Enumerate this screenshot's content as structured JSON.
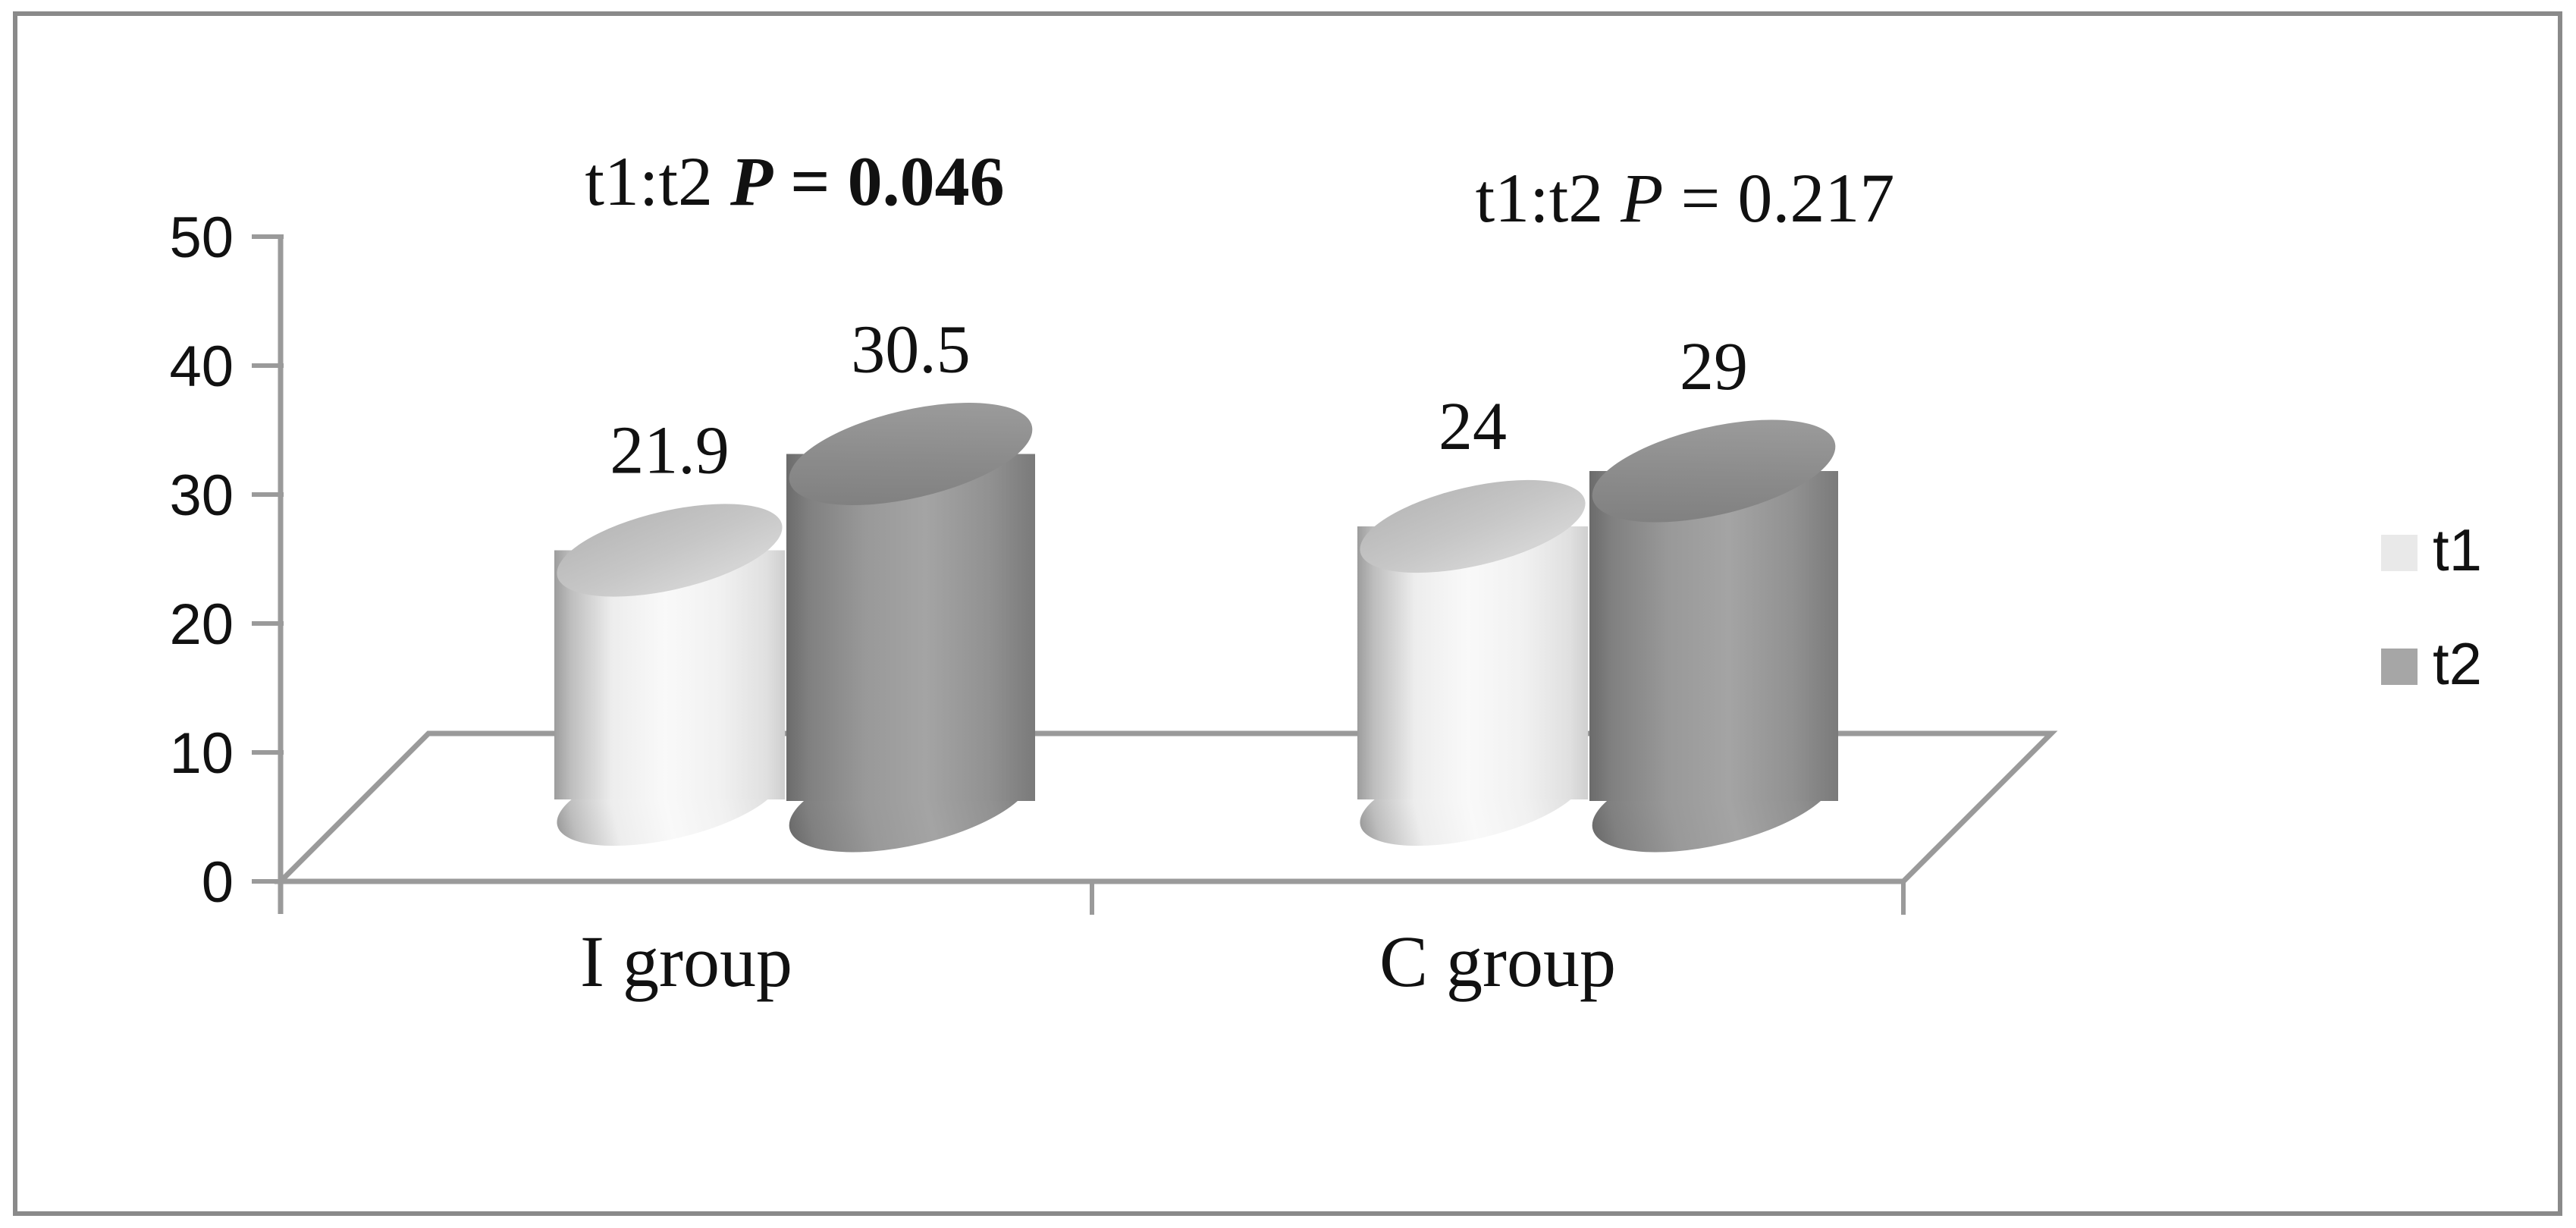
{
  "chart_data": {
    "type": "bar",
    "subtype": "3d-cylinder",
    "title": "",
    "xlabel": "",
    "ylabel": "",
    "categories": [
      "I group",
      "C group"
    ],
    "series": [
      {
        "name": "t1",
        "values": [
          21.9,
          24
        ],
        "labels": [
          "21.9",
          "24"
        ],
        "color": "#e9e9e9"
      },
      {
        "name": "t2",
        "values": [
          30.5,
          29
        ],
        "labels": [
          "30.5",
          "29"
        ],
        "color": "#a6a6a6"
      }
    ],
    "annotations": [
      {
        "full_text": "t1:t2 P = 0.046",
        "prefix": "t1:t2 ",
        "p": "P",
        "suffix": " = 0.046",
        "bold": true
      },
      {
        "full_text": "t1:t2 P = 0.217",
        "prefix": "t1:t2 ",
        "p": "P",
        "suffix": " = 0.217",
        "bold": false
      }
    ],
    "ylim": [
      0,
      50
    ],
    "yticks": [
      0,
      10,
      20,
      30,
      40,
      50
    ],
    "ytick_labels": [
      "0",
      "10",
      "20",
      "30",
      "40",
      "50"
    ],
    "grid": false,
    "legend": {
      "position": "right",
      "entries": [
        "t1",
        "t2"
      ]
    }
  },
  "colors": {
    "background": "#ffffff",
    "frame": "#8a8a8a",
    "axis": "#9a9a9a",
    "text": "#111111",
    "t1_fill": "#e9e9e9",
    "t2_fill": "#a6a6a6"
  }
}
